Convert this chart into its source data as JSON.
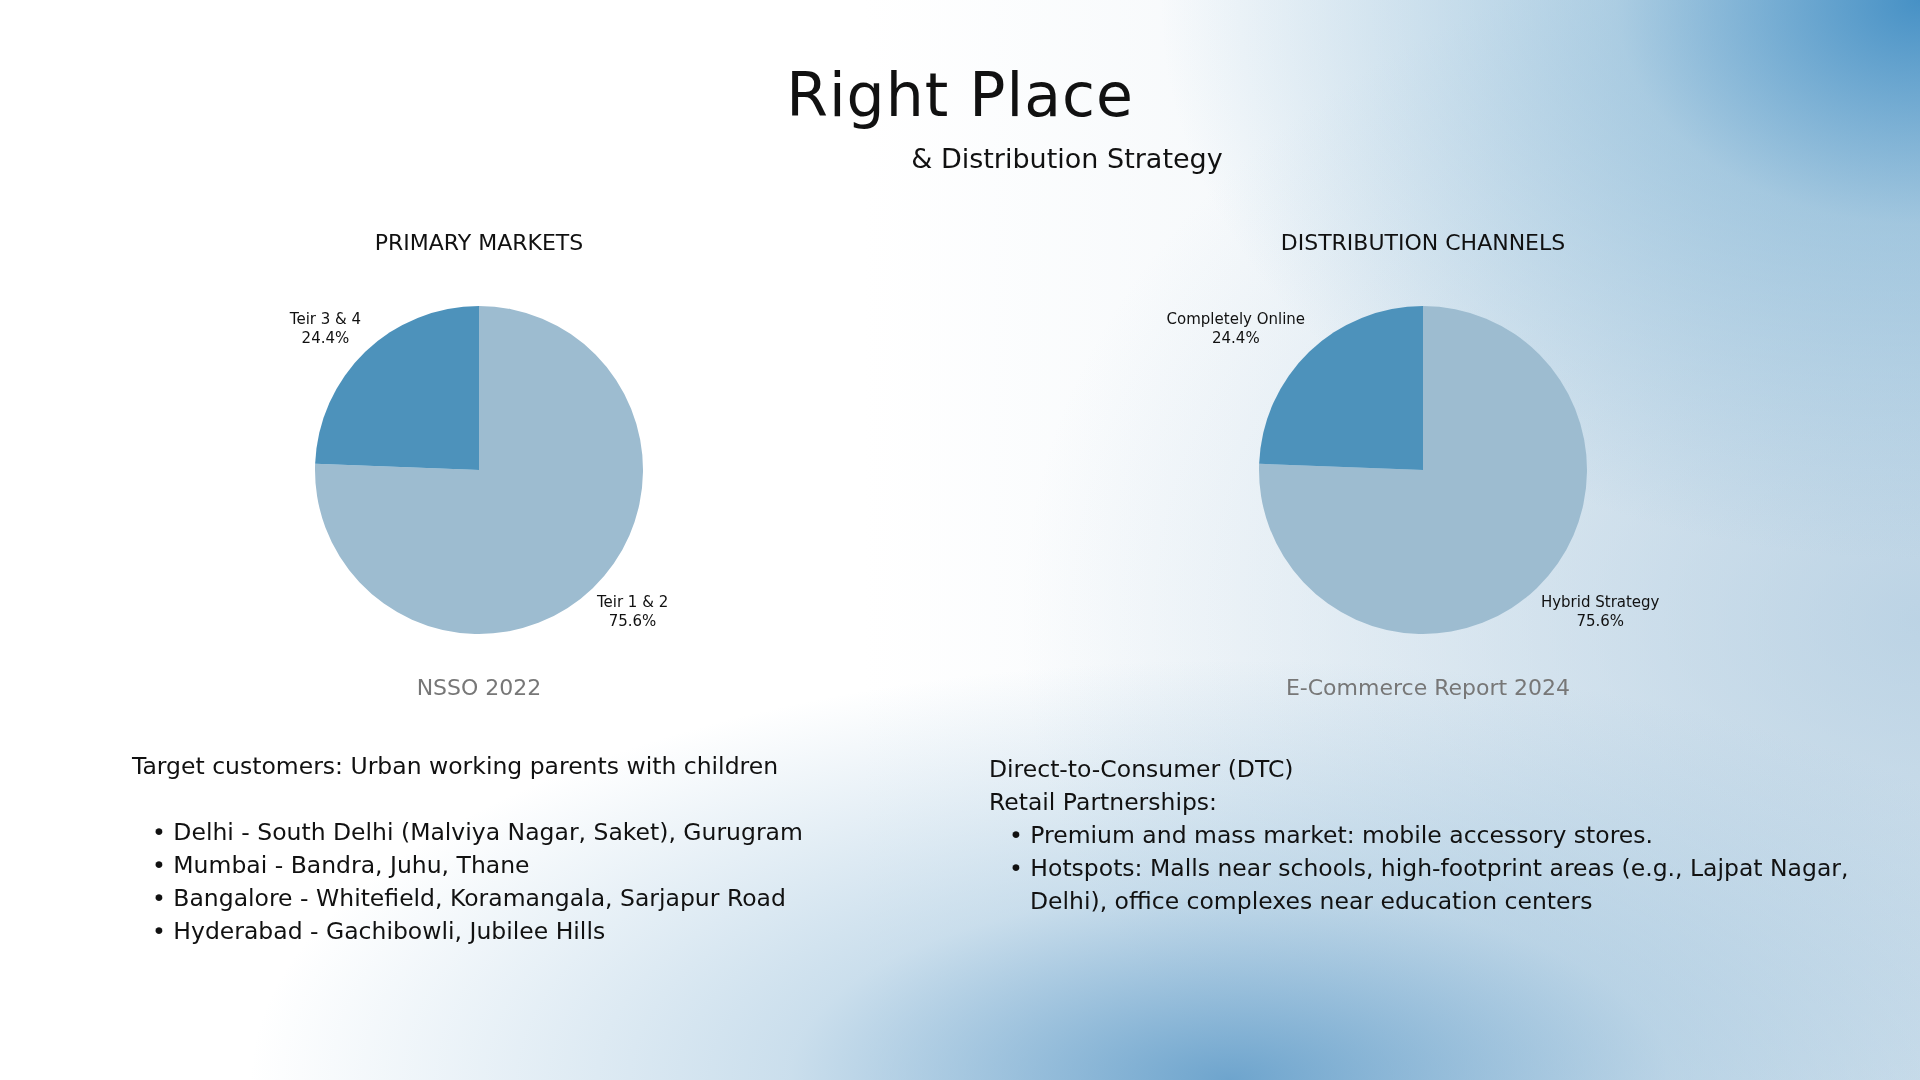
{
  "chart_data": [
    {
      "type": "other",
      "title": "Right Place",
      "subtitle": "& Distribution Strategy"
    },
    {
      "type": "pie",
      "title": "PRIMARY MARKETS",
      "categories": [
        "Teir 1 & 2",
        "Teir 3 & 4"
      ],
      "values": [
        75.6,
        24.4
      ],
      "colors": [
        "#9dbcd0",
        "#4d92bb"
      ],
      "value_labels": [
        "75.6%",
        "24.4%"
      ],
      "annotations": [
        "NSSO 2022",
        "Target customers: Urban working parents with children",
        "• Delhi - South Delhi (Malviya Nagar, Saket), Gurugram",
        "• Mumbai - Bandra, Juhu, Thane",
        "• Bangalore - Whitefield, Koramangala, Sarjapur Road",
        "• Hyderabad - Gachibowli, Jubilee Hills"
      ]
    },
    {
      "type": "pie",
      "title": "DISTRIBUTION CHANNELS",
      "categories": [
        "Hybrid Strategy",
        "Completely Online"
      ],
      "values": [
        75.6,
        24.4
      ],
      "colors": [
        "#9dbcd0",
        "#4d92bb"
      ],
      "value_labels": [
        "75.6%",
        "24.4%"
      ],
      "annotations": [
        "E-Commerce Report 2024",
        "Direct-to-Consumer (DTC)",
        "Retail Partnerships:",
        "• Premium and mass market: mobile accessory stores.",
        "• Hotspots: Malls near schools, high-footprint areas (e.g., Lajpat Nagar, Delhi), office complexes near education centers"
      ]
    }
  ]
}
